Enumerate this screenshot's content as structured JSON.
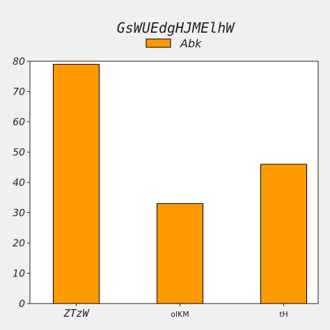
{
  "chart_data": {
    "type": "bar",
    "title": "GsWUEdgHJMElhW",
    "xlabel": "",
    "ylabel": "",
    "categories": [
      "ZTzW",
      "olKM",
      "tH"
    ],
    "series": [
      {
        "name": "Abk",
        "values": [
          79,
          33,
          46
        ],
        "color": "#ff9900"
      }
    ],
    "ylim": [
      0,
      80
    ],
    "yticks": [
      "0",
      "10",
      "20",
      "30",
      "40",
      "50",
      "60",
      "70",
      "80"
    ],
    "grid": false,
    "legend_position": "top-center",
    "bar_edge_color": "#000000",
    "plot_background": "#ffffff",
    "figure_background": "#f0f0f0"
  }
}
